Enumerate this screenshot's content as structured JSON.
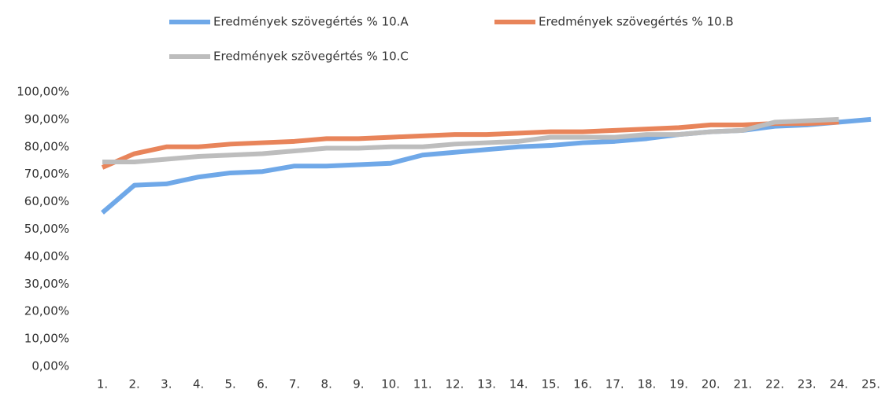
{
  "chart_data": {
    "type": "line",
    "categories": [
      "1.",
      "2.",
      "3.",
      "4.",
      "5.",
      "6.",
      "7.",
      "8.",
      "9.",
      "10.",
      "11.",
      "12.",
      "13.",
      "14.",
      "15.",
      "16.",
      "17.",
      "18.",
      "19.",
      "20.",
      "21.",
      "22.",
      "23.",
      "24.",
      "25."
    ],
    "series": [
      {
        "name": "Eredmények szövegértés % 10.A",
        "color": "#6fa8e8",
        "values": [
          56,
          66,
          66.5,
          69,
          70.5,
          71,
          73,
          73,
          73.5,
          74,
          77,
          78,
          79,
          80,
          80.5,
          81.5,
          82,
          83,
          84.5,
          85.5,
          86,
          87.5,
          88,
          89,
          90
        ]
      },
      {
        "name": "Eredmények szövegértés % 10.B",
        "color": "#e8845a",
        "values": [
          72.5,
          77.5,
          80,
          80,
          81,
          81.5,
          82,
          83,
          83,
          83.5,
          84,
          84.5,
          84.5,
          85,
          85.5,
          85.5,
          86,
          86.5,
          87,
          88,
          88,
          88.5,
          88.5,
          89,
          null
        ]
      },
      {
        "name": "Eredmények szövegértés % 10.C",
        "color": "#bdbdbd",
        "values": [
          74.5,
          74.5,
          75.5,
          76.5,
          77,
          77.5,
          78.5,
          79.5,
          79.5,
          80,
          80,
          81,
          81.5,
          82,
          83.5,
          83.5,
          83.5,
          84.5,
          84.5,
          85.5,
          86,
          89,
          89.5,
          90,
          null
        ]
      }
    ],
    "ylim": [
      0,
      100
    ],
    "yticks": [
      {
        "value": 0,
        "label": "0,00%"
      },
      {
        "value": 10,
        "label": "10,00%"
      },
      {
        "value": 20,
        "label": "20,00%"
      },
      {
        "value": 30,
        "label": "30,00%"
      },
      {
        "value": 40,
        "label": "40,00%"
      },
      {
        "value": 50,
        "label": "50,00%"
      },
      {
        "value": 60,
        "label": "60,00%"
      },
      {
        "value": 70,
        "label": "70,00%"
      },
      {
        "value": 80,
        "label": "80,00%"
      },
      {
        "value": 90,
        "label": "90,00%"
      },
      {
        "value": 100,
        "label": "100,00%"
      }
    ]
  }
}
